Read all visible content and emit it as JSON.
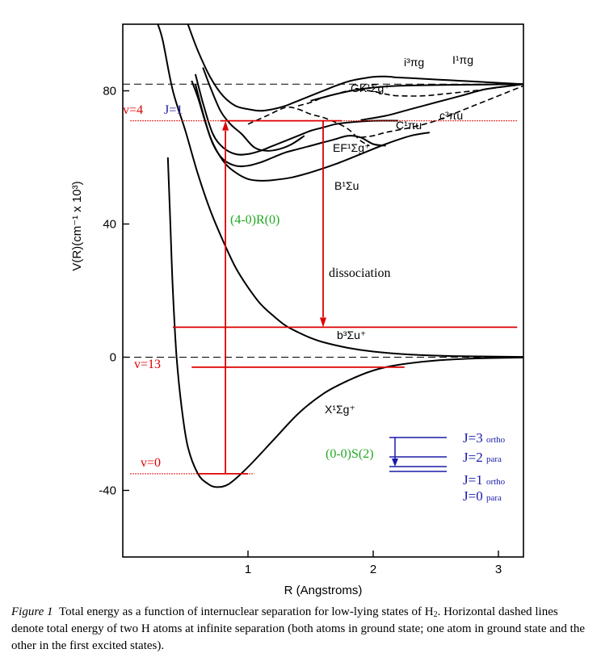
{
  "chart_data": {
    "type": "line",
    "xlabel": "R (Angstroms)",
    "ylabel": "V(R)(cm⁻¹ x 10³)",
    "xlim": [
      0,
      3.2
    ],
    "ylim": [
      -60,
      100
    ],
    "x_ticks": [
      1,
      2,
      3
    ],
    "y_ticks": [
      -40,
      0,
      40,
      80
    ],
    "dashed_levels": [
      0,
      82
    ],
    "curves": [
      {
        "name": "X¹Σg⁺",
        "points": [
          [
            0.36,
            60
          ],
          [
            0.38,
            40
          ],
          [
            0.4,
            20
          ],
          [
            0.43,
            0
          ],
          [
            0.47,
            -15
          ],
          [
            0.52,
            -27
          ],
          [
            0.6,
            -35
          ],
          [
            0.68,
            -38
          ],
          [
            0.75,
            -39
          ],
          [
            0.85,
            -38
          ],
          [
            1.0,
            -33
          ],
          [
            1.2,
            -25
          ],
          [
            1.4,
            -17
          ],
          [
            1.6,
            -11
          ],
          [
            1.8,
            -7
          ],
          [
            2.0,
            -4
          ],
          [
            2.2,
            -2.3
          ],
          [
            2.5,
            -1
          ],
          [
            2.8,
            -0.4
          ],
          [
            3.2,
            -0.1
          ]
        ]
      },
      {
        "name": "b³Σu⁺",
        "points": [
          [
            0.28,
            100
          ],
          [
            0.32,
            95
          ],
          [
            0.4,
            80
          ],
          [
            0.5,
            68
          ],
          [
            0.6,
            55
          ],
          [
            0.7,
            44
          ],
          [
            0.8,
            35
          ],
          [
            0.9,
            27
          ],
          [
            1.0,
            21
          ],
          [
            1.1,
            16
          ],
          [
            1.2,
            12.5
          ],
          [
            1.3,
            9.5
          ],
          [
            1.4,
            7.5
          ],
          [
            1.5,
            5.8
          ],
          [
            1.6,
            4.5
          ],
          [
            1.8,
            2.8
          ],
          [
            2.0,
            1.7
          ],
          [
            2.3,
            0.8
          ],
          [
            2.7,
            0.3
          ],
          [
            3.2,
            0.1
          ]
        ]
      },
      {
        "name": "B¹Σu",
        "points": [
          [
            0.55,
            83
          ],
          [
            0.6,
            78
          ],
          [
            0.7,
            66
          ],
          [
            0.8,
            59
          ],
          [
            0.9,
            55.5
          ],
          [
            1.0,
            53.5
          ],
          [
            1.1,
            53
          ],
          [
            1.2,
            53.2
          ],
          [
            1.35,
            54
          ],
          [
            1.5,
            55.5
          ],
          [
            1.7,
            58
          ],
          [
            1.9,
            61
          ],
          [
            2.1,
            64
          ],
          [
            2.3,
            66.5
          ],
          [
            2.45,
            67.5
          ]
        ]
      },
      {
        "name": "EF¹Σg⁺",
        "points": [
          [
            0.58,
            82
          ],
          [
            0.65,
            72
          ],
          [
            0.72,
            64
          ],
          [
            0.8,
            59.5
          ],
          [
            0.9,
            57.5
          ],
          [
            1.0,
            57.5
          ],
          [
            1.1,
            58.5
          ],
          [
            1.2,
            60
          ],
          [
            1.3,
            61.5
          ],
          [
            1.4,
            62.5
          ],
          [
            1.5,
            63.5
          ],
          [
            1.6,
            64.5
          ],
          [
            1.7,
            65.5
          ],
          [
            1.8,
            66.5
          ],
          [
            1.9,
            66
          ],
          [
            2.0,
            64
          ],
          [
            2.1,
            63.5
          ]
        ]
      },
      {
        "name": "C¹Πu",
        "points": [
          [
            0.58,
            85
          ],
          [
            0.65,
            75
          ],
          [
            0.72,
            67
          ],
          [
            0.8,
            63
          ],
          [
            0.9,
            61
          ],
          [
            1.0,
            61
          ],
          [
            1.1,
            62
          ],
          [
            1.2,
            63.5
          ],
          [
            1.3,
            65
          ],
          [
            1.4,
            66.5
          ],
          [
            1.5,
            68
          ],
          [
            1.6,
            69
          ],
          [
            1.7,
            70
          ],
          [
            1.8,
            70.5
          ],
          [
            2.0,
            71
          ],
          [
            2.2,
            71
          ]
        ]
      },
      {
        "name": "GK¹Σg⁺",
        "points": [
          [
            0.64,
            87
          ],
          [
            0.7,
            81
          ],
          [
            0.78,
            74
          ],
          [
            0.86,
            70
          ],
          [
            0.95,
            67
          ],
          [
            1.05,
            63
          ],
          [
            1.15,
            62
          ],
          [
            1.25,
            62.5
          ],
          [
            1.35,
            64
          ],
          [
            1.45,
            66.5
          ]
        ]
      },
      {
        "name": "i³Πg / I¹Πg",
        "points": [
          [
            0.52,
            100
          ],
          [
            0.6,
            92
          ],
          [
            0.7,
            84
          ],
          [
            0.8,
            78.5
          ],
          [
            0.9,
            75.5
          ],
          [
            1.0,
            74.5
          ],
          [
            1.1,
            74
          ],
          [
            1.2,
            74.5
          ],
          [
            1.3,
            75.5
          ],
          [
            1.4,
            77
          ],
          [
            1.5,
            78.5
          ],
          [
            1.6,
            80
          ],
          [
            1.7,
            81.5
          ],
          [
            1.8,
            82.8
          ],
          [
            1.9,
            83.6
          ],
          [
            2.0,
            84.2
          ],
          [
            2.1,
            84.3
          ],
          [
            2.2,
            84
          ],
          [
            2.3,
            83.8
          ],
          [
            2.4,
            83.6
          ],
          [
            2.6,
            83.2
          ],
          [
            2.8,
            82.8
          ],
          [
            3.0,
            82.4
          ],
          [
            3.2,
            82
          ]
        ]
      },
      {
        "name": "c³Πu",
        "points": [
          [
            1.9,
            71.2
          ],
          [
            2.1,
            72.5
          ],
          [
            2.3,
            74.5
          ],
          [
            2.5,
            76.5
          ],
          [
            2.7,
            78.5
          ],
          [
            2.9,
            80.5
          ],
          [
            3.1,
            81.5
          ],
          [
            3.2,
            82
          ]
        ]
      },
      {
        "name": "upper-band",
        "points": [
          [
            1.5,
            77
          ],
          [
            1.7,
            79
          ],
          [
            1.9,
            80.5
          ],
          [
            2.1,
            81.3
          ],
          [
            2.3,
            81.6
          ],
          [
            2.6,
            81.8
          ],
          [
            2.9,
            81.9
          ],
          [
            3.2,
            82
          ]
        ]
      }
    ],
    "dashed_curves": [
      {
        "name": "GK-dashed",
        "points": [
          [
            1.4,
            75.5
          ],
          [
            1.5,
            76.5
          ],
          [
            1.6,
            78
          ],
          [
            1.7,
            79
          ],
          [
            1.8,
            80
          ],
          [
            1.9,
            80.2
          ],
          [
            2.0,
            79.8
          ],
          [
            2.1,
            79
          ],
          [
            2.2,
            78.5
          ],
          [
            2.4,
            78.5
          ],
          [
            2.6,
            79.2
          ],
          [
            2.8,
            80
          ],
          [
            3.0,
            81
          ],
          [
            3.2,
            82
          ]
        ]
      },
      {
        "name": "EF-dashed",
        "points": [
          [
            1.0,
            70
          ],
          [
            1.15,
            72.5
          ],
          [
            1.3,
            75
          ],
          [
            1.4,
            74.5
          ],
          [
            1.5,
            73
          ],
          [
            1.6,
            72
          ],
          [
            1.7,
            70.5
          ],
          [
            1.8,
            68.5
          ],
          [
            1.9,
            65
          ],
          [
            1.97,
            63.5
          ]
        ]
      },
      {
        "name": "C-dashed",
        "points": [
          [
            1.9,
            66
          ],
          [
            2.0,
            66.5
          ],
          [
            2.1,
            67.5
          ],
          [
            2.3,
            69
          ],
          [
            2.5,
            71
          ],
          [
            2.7,
            74
          ],
          [
            2.9,
            77
          ],
          [
            3.1,
            80
          ],
          [
            3.2,
            81.5
          ]
        ]
      }
    ],
    "labels": {
      "i3pi": "i³πg",
      "I1pi": "I¹πg",
      "GK": "GK¹Σg⁺",
      "c3pi": "c³πu",
      "C1pi": "C¹πu",
      "EF": "EF¹Σg⁺",
      "B": "B¹Σu",
      "b3": "b³Σu⁺",
      "X": "X¹Σg⁺"
    },
    "annotations": {
      "v4": "v=4",
      "J1": "J=1",
      "v13": "v=13",
      "v0": "v=0",
      "transition": "(4-0)R(0)",
      "dissociation": "dissociation",
      "oo_s2": "(0-0)S(2)"
    },
    "rot_levels": [
      {
        "J": "J=3",
        "kind": "ortho"
      },
      {
        "J": "J=2",
        "kind": "para"
      },
      {
        "J": "J=1",
        "kind": "ortho"
      },
      {
        "J": "J=0",
        "kind": "para"
      }
    ],
    "colors": {
      "curve": "#000000",
      "red": "#dd0000",
      "blue": "#1a1aa8",
      "green": "#22a822"
    }
  },
  "caption": {
    "label": "Figure 1",
    "text_1": "Total energy as a function of internuclear separation for low-lying states of H",
    "sub": "2",
    "text_2": ". Horizontal dashed lines denote total energy of two H atoms at infinite separation (both atoms in ground state; one atom in ground state and the other in the first excited states)."
  }
}
